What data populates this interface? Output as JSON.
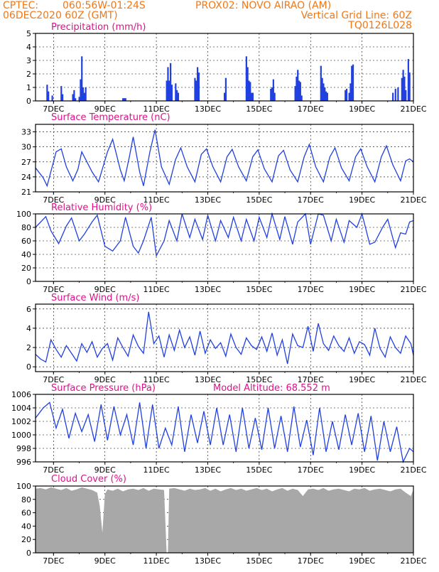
{
  "header": {
    "line1_left": "CPTEC:",
    "line1_coords": "060:56W-01:24S",
    "line1_station": "PROX02: NOVO AIRAO (AM)",
    "line2_left": "06DEC2020 60Z (GMT)",
    "line2_right": "Vertical Grid Line: 60Z",
    "line3_right": "TQ0126L028"
  },
  "colors": {
    "header": "#f07818",
    "title": "#e0108a",
    "series": "#2040e0",
    "cloud": "#a8a8a8",
    "axis": "#000000"
  },
  "x_axis": {
    "range_days": [
      6.3,
      21.0
    ],
    "ticks": [
      7,
      9,
      11,
      13,
      15,
      17,
      19,
      21
    ],
    "tick_labels": [
      "7DEC",
      "9DEC",
      "11DEC",
      "13DEC",
      "15DEC",
      "17DEC",
      "19DEC",
      "21DEC"
    ]
  },
  "chart_data": [
    {
      "id": "precip",
      "type": "bar",
      "title": "Precipitation (mm/h)",
      "xlabel": "",
      "ylabel": "",
      "ylim": [
        0,
        5
      ],
      "yticks": [
        0,
        1,
        2,
        3,
        4,
        5
      ],
      "grid": true,
      "bars": [
        [
          6.75,
          1.2
        ],
        [
          6.8,
          0.7
        ],
        [
          6.95,
          0.4
        ],
        [
          7.3,
          1.1
        ],
        [
          7.35,
          0.5
        ],
        [
          7.75,
          0.5
        ],
        [
          7.8,
          0.8
        ],
        [
          7.85,
          0.2
        ],
        [
          8.0,
          0.3
        ],
        [
          8.05,
          1.6
        ],
        [
          8.1,
          3.3
        ],
        [
          8.15,
          1.0
        ],
        [
          8.2,
          0.6
        ],
        [
          8.25,
          1.0
        ],
        [
          9.7,
          0.2
        ],
        [
          9.75,
          0.2
        ],
        [
          9.8,
          0.2
        ],
        [
          11.4,
          1.5
        ],
        [
          11.45,
          2.5
        ],
        [
          11.5,
          1.5
        ],
        [
          11.55,
          2.8
        ],
        [
          11.6,
          1.2
        ],
        [
          11.75,
          1.3
        ],
        [
          11.8,
          0.8
        ],
        [
          11.85,
          0.6
        ],
        [
          12.5,
          1.7
        ],
        [
          12.55,
          1.5
        ],
        [
          12.6,
          2.5
        ],
        [
          12.65,
          2.1
        ],
        [
          13.65,
          0.6
        ],
        [
          13.7,
          1.7
        ],
        [
          14.5,
          3.3
        ],
        [
          14.55,
          2.5
        ],
        [
          14.6,
          1.5
        ],
        [
          14.65,
          1.4
        ],
        [
          14.7,
          0.6
        ],
        [
          14.75,
          0.6
        ],
        [
          15.45,
          0.9
        ],
        [
          15.5,
          1.0
        ],
        [
          15.55,
          1.6
        ],
        [
          15.6,
          0.6
        ],
        [
          16.4,
          1.1
        ],
        [
          16.45,
          1.8
        ],
        [
          16.5,
          2.3
        ],
        [
          16.55,
          1.5
        ],
        [
          16.6,
          1.4
        ],
        [
          16.65,
          0.4
        ],
        [
          17.4,
          2.6
        ],
        [
          17.45,
          1.7
        ],
        [
          17.5,
          1.3
        ],
        [
          17.55,
          1.0
        ],
        [
          17.6,
          0.7
        ],
        [
          17.65,
          0.6
        ],
        [
          18.35,
          0.8
        ],
        [
          18.4,
          0.9
        ],
        [
          18.5,
          0.6
        ],
        [
          18.55,
          1.3
        ],
        [
          18.6,
          2.6
        ],
        [
          18.65,
          2.7
        ],
        [
          20.2,
          0.6
        ],
        [
          20.3,
          0.9
        ],
        [
          20.4,
          1.0
        ],
        [
          20.55,
          1.7
        ],
        [
          20.6,
          2.3
        ],
        [
          20.65,
          1.8
        ],
        [
          20.7,
          0.8
        ],
        [
          20.8,
          3.1
        ],
        [
          20.85,
          2.1
        ]
      ]
    },
    {
      "id": "temp",
      "type": "line",
      "title": "Surface Temperature (nC)",
      "xlabel": "",
      "ylabel": "",
      "ylim": [
        21,
        34.5
      ],
      "yticks": [
        21,
        24,
        27,
        30,
        33
      ],
      "grid": true,
      "x": [
        6.3,
        6.6,
        6.75,
        7.1,
        7.3,
        7.5,
        7.75,
        7.95,
        8.1,
        8.5,
        8.75,
        9.1,
        9.3,
        9.6,
        9.75,
        9.95,
        10.1,
        10.35,
        10.5,
        10.75,
        10.95,
        11.2,
        11.5,
        11.75,
        11.95,
        12.2,
        12.5,
        12.75,
        12.95,
        13.2,
        13.5,
        13.75,
        13.95,
        14.2,
        14.5,
        14.75,
        14.95,
        15.2,
        15.5,
        15.75,
        15.95,
        16.2,
        16.5,
        16.75,
        16.95,
        17.2,
        17.5,
        17.75,
        17.95,
        18.2,
        18.5,
        18.75,
        18.95,
        19.2,
        19.5,
        19.75,
        19.95,
        20.2,
        20.5,
        20.7,
        20.85,
        21.0
      ],
      "values": [
        25.8,
        23.8,
        22.2,
        29.0,
        29.6,
        26.0,
        23.2,
        25.5,
        29.0,
        25.0,
        23.0,
        29.0,
        31.5,
        25.4,
        23.2,
        28.0,
        32.0,
        25.0,
        22.2,
        29.0,
        33.4,
        26.0,
        22.5,
        27.5,
        29.8,
        26.0,
        23.0,
        28.5,
        29.6,
        26.0,
        23.0,
        28.0,
        29.5,
        26.0,
        23.2,
        28.0,
        29.4,
        25.6,
        23.0,
        28.2,
        29.3,
        25.4,
        23.0,
        28.0,
        30.5,
        26.0,
        23.0,
        28.0,
        29.8,
        25.8,
        23.2,
        28.0,
        29.6,
        26.0,
        23.0,
        28.0,
        30.2,
        26.4,
        23.2,
        27.2,
        27.6,
        27.0
      ]
    },
    {
      "id": "rh",
      "type": "line",
      "title": "Relative Humidity (%)",
      "xlabel": "",
      "ylabel": "",
      "ylim": [
        0,
        100
      ],
      "yticks": [
        0,
        20,
        40,
        60,
        80,
        100
      ],
      "grid": true,
      "x": [
        6.3,
        6.7,
        6.9,
        7.2,
        7.5,
        7.7,
        8.0,
        8.2,
        8.5,
        8.7,
        9.0,
        9.3,
        9.6,
        9.8,
        10.1,
        10.3,
        10.5,
        10.8,
        11.0,
        11.3,
        11.5,
        11.8,
        12.0,
        12.3,
        12.5,
        12.8,
        13.0,
        13.3,
        13.5,
        13.8,
        14.0,
        14.3,
        14.5,
        14.8,
        15.0,
        15.3,
        15.5,
        15.8,
        16.0,
        16.3,
        16.5,
        16.8,
        17.0,
        17.3,
        17.5,
        17.8,
        18.0,
        18.3,
        18.5,
        18.8,
        19.0,
        19.3,
        19.5,
        19.8,
        20.0,
        20.3,
        20.5,
        20.7,
        20.85,
        21.0
      ],
      "values": [
        80,
        96,
        75,
        56,
        82,
        94,
        60,
        70,
        88,
        98,
        52,
        45,
        60,
        95,
        52,
        42,
        60,
        95,
        38,
        60,
        90,
        60,
        100,
        65,
        92,
        62,
        98,
        60,
        90,
        65,
        95,
        60,
        92,
        60,
        95,
        65,
        100,
        62,
        96,
        55,
        88,
        100,
        55,
        100,
        98,
        60,
        92,
        58,
        90,
        80,
        100,
        55,
        58,
        80,
        92,
        50,
        72,
        70,
        88,
        90
      ]
    },
    {
      "id": "wind",
      "type": "line",
      "title": "Surface Wind (m/s)",
      "xlabel": "",
      "ylabel": "",
      "ylim": [
        -0.5,
        6.5
      ],
      "yticks": [
        0,
        2,
        4,
        6
      ],
      "grid": true,
      "x": [
        6.3,
        6.5,
        6.7,
        6.9,
        7.1,
        7.3,
        7.5,
        7.7,
        7.9,
        8.1,
        8.3,
        8.5,
        8.7,
        8.9,
        9.1,
        9.3,
        9.5,
        9.7,
        9.9,
        10.1,
        10.3,
        10.5,
        10.7,
        10.9,
        11.1,
        11.3,
        11.5,
        11.7,
        11.9,
        12.1,
        12.3,
        12.5,
        12.7,
        12.9,
        13.1,
        13.3,
        13.5,
        13.7,
        13.9,
        14.1,
        14.3,
        14.5,
        14.7,
        14.9,
        15.1,
        15.3,
        15.5,
        15.7,
        15.9,
        16.1,
        16.3,
        16.5,
        16.7,
        16.9,
        17.1,
        17.3,
        17.5,
        17.7,
        17.9,
        18.1,
        18.3,
        18.5,
        18.7,
        18.9,
        19.1,
        19.3,
        19.5,
        19.7,
        19.9,
        20.1,
        20.3,
        20.5,
        20.7,
        20.9,
        21.0
      ],
      "values": [
        1.3,
        0.8,
        0.5,
        2.8,
        1.8,
        1.0,
        2.2,
        1.4,
        0.6,
        2.4,
        1.5,
        2.6,
        1.0,
        1.9,
        2.4,
        0.7,
        3.0,
        2.0,
        1.1,
        3.3,
        2.1,
        1.4,
        5.7,
        2.4,
        3.2,
        1.0,
        3.3,
        1.7,
        3.8,
        2.0,
        3.1,
        1.2,
        3.7,
        1.4,
        2.8,
        1.9,
        2.5,
        1.1,
        3.4,
        2.0,
        1.3,
        3.0,
        2.2,
        1.8,
        3.1,
        1.6,
        3.5,
        1.2,
        2.8,
        0.3,
        3.4,
        2.2,
        2.0,
        4.2,
        1.6,
        4.5,
        2.4,
        1.7,
        3.2,
        2.2,
        1.6,
        3.0,
        1.4,
        2.6,
        2.3,
        1.2,
        4.0,
        1.9,
        1.0,
        3.1,
        2.0,
        1.4,
        3.2,
        2.4,
        1.2
      ]
    },
    {
      "id": "pressure",
      "type": "line",
      "title": "Surface Pressure (hPa)",
      "annotation": "Model Altitude: 68.552 m",
      "xlabel": "",
      "ylabel": "",
      "ylim": [
        996,
        1006
      ],
      "yticks": [
        996,
        998,
        1000,
        1002,
        1004,
        1006
      ],
      "grid": true,
      "x": [
        6.3,
        6.6,
        6.85,
        7.1,
        7.35,
        7.6,
        7.85,
        8.1,
        8.35,
        8.6,
        8.85,
        9.1,
        9.35,
        9.6,
        9.85,
        10.1,
        10.35,
        10.6,
        10.85,
        11.1,
        11.35,
        11.6,
        11.85,
        12.1,
        12.35,
        12.6,
        12.85,
        13.1,
        13.35,
        13.6,
        13.85,
        14.1,
        14.35,
        14.6,
        14.85,
        15.1,
        15.35,
        15.6,
        15.85,
        16.1,
        16.35,
        16.6,
        16.85,
        17.1,
        17.35,
        17.6,
        17.85,
        18.1,
        18.35,
        18.6,
        18.85,
        19.1,
        19.35,
        19.6,
        19.85,
        20.1,
        20.35,
        20.6,
        20.85,
        21.0
      ],
      "values": [
        1002.5,
        1004.0,
        1004.8,
        1001.0,
        1003.8,
        999.5,
        1003.2,
        1000.5,
        1003.0,
        999.0,
        1004.5,
        999.2,
        1004.2,
        1000.0,
        1003.0,
        998.5,
        1004.8,
        998.0,
        1004.5,
        998.0,
        1001.0,
        998.5,
        1004.2,
        997.5,
        1003.0,
        998.8,
        1003.5,
        998.5,
        1004.0,
        998.5,
        1003.0,
        997.5,
        1004.0,
        998.0,
        1002.5,
        997.8,
        1004.0,
        998.0,
        1002.8,
        997.5,
        1004.2,
        998.2,
        1002.2,
        997.0,
        1004.0,
        997.5,
        1002.0,
        997.8,
        1003.0,
        998.5,
        1003.2,
        997.5,
        1002.8,
        996.2,
        1002.0,
        997.5,
        1001.2,
        996.0,
        998.0,
        997.5
      ]
    },
    {
      "id": "cloud",
      "type": "area",
      "title": "Cloud Cover (%)",
      "xlabel": "",
      "ylabel": "",
      "ylim": [
        0,
        100
      ],
      "yticks": [
        0,
        20,
        40,
        60,
        80,
        100
      ],
      "grid": true,
      "x": [
        6.3,
        6.5,
        6.7,
        6.9,
        7.1,
        7.3,
        7.5,
        7.7,
        7.9,
        8.1,
        8.3,
        8.5,
        8.7,
        8.8,
        8.9,
        9.0,
        9.1,
        9.3,
        9.5,
        9.7,
        9.9,
        10.1,
        10.3,
        10.5,
        10.7,
        10.9,
        11.1,
        11.3,
        11.4,
        11.45,
        11.5,
        11.7,
        11.9,
        12.1,
        12.3,
        12.5,
        12.7,
        12.9,
        13.1,
        13.3,
        13.5,
        13.7,
        13.9,
        14.1,
        14.3,
        14.5,
        14.7,
        14.9,
        15.1,
        15.3,
        15.5,
        15.7,
        15.9,
        16.1,
        16.3,
        16.5,
        16.7,
        16.9,
        17.1,
        17.3,
        17.5,
        17.7,
        17.9,
        18.1,
        18.3,
        18.5,
        18.7,
        18.9,
        19.1,
        19.3,
        19.5,
        19.7,
        19.9,
        20.1,
        20.3,
        20.5,
        20.7,
        20.9,
        21.0
      ],
      "values": [
        96,
        97,
        95,
        98,
        96,
        94,
        97,
        93,
        95,
        98,
        96,
        94,
        90,
        70,
        30,
        88,
        95,
        93,
        96,
        92,
        95,
        96,
        94,
        97,
        93,
        96,
        95,
        94,
        0,
        0,
        96,
        97,
        95,
        93,
        96,
        94,
        95,
        97,
        93,
        96,
        92,
        95,
        97,
        94,
        96,
        93,
        95,
        97,
        94,
        96,
        92,
        95,
        97,
        93,
        96,
        94,
        85,
        95,
        96,
        94,
        97,
        93,
        95,
        96,
        94,
        92,
        96,
        95,
        97,
        93,
        95,
        96,
        94,
        92,
        95,
        96,
        90,
        85,
        95
      ]
    }
  ]
}
